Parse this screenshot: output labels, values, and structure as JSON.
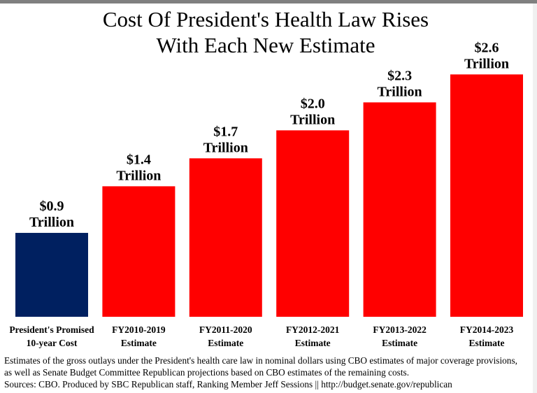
{
  "chart_data": {
    "type": "bar",
    "title": "Cost Of President's Health Law Rises",
    "subtitle": "With Each New Estimate",
    "categories": [
      [
        "President's Promised",
        "10-year Cost"
      ],
      [
        "FY2010-2019",
        "Estimate"
      ],
      [
        "FY2011-2020",
        "Estimate"
      ],
      [
        "FY2012-2021",
        "Estimate"
      ],
      [
        "FY2013-2022",
        "Estimate"
      ],
      [
        "FY2014-2023",
        "Estimate"
      ]
    ],
    "values": [
      0.9,
      1.4,
      1.7,
      2.0,
      2.3,
      2.6
    ],
    "data_labels": [
      [
        "$0.9",
        "Trillion"
      ],
      [
        "$1.4",
        "Trillion"
      ],
      [
        "$1.7",
        "Trillion"
      ],
      [
        "$2.0",
        "Trillion"
      ],
      [
        "$2.3",
        "Trillion"
      ],
      [
        "$2.6",
        "Trillion"
      ]
    ],
    "colors": [
      "#002060",
      "#ff0000",
      "#ff0000",
      "#ff0000",
      "#ff0000",
      "#ff0000"
    ],
    "ylim": [
      0,
      2.6
    ],
    "grid": false,
    "legend": "none",
    "xlabel": "",
    "ylabel": ""
  },
  "footnote": [
    "Estimates of the gross outlays under the President's health care law in nominal dollars using CBO estimates of major coverage provisions,",
    "as well as Senate Budget Committee Republican projections based on CBO estimates of the remaining costs.",
    "Sources: CBO. Produced by SBC Republican staff, Ranking Member Jeff Sessions || http://budget.senate.gov/republican"
  ]
}
